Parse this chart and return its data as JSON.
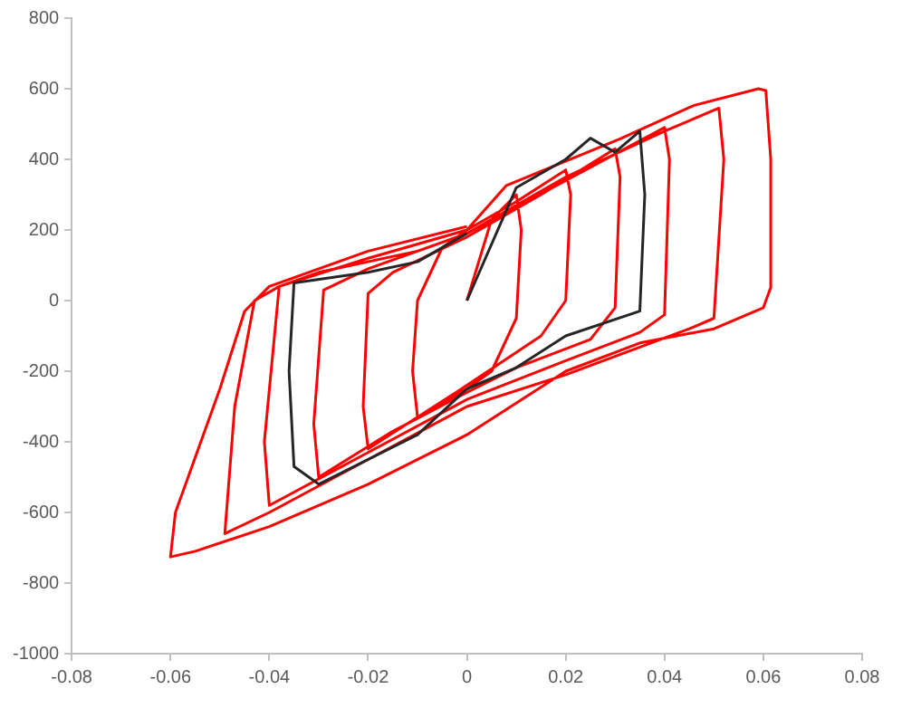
{
  "chart_data": {
    "type": "line",
    "xlim": [
      -0.08,
      0.08
    ],
    "xticks": [
      -0.08,
      -0.06,
      -0.04,
      -0.02,
      0,
      0.02,
      0.04,
      0.06,
      0.08
    ],
    "ylim": [
      -1000,
      800
    ],
    "yticks": [
      -1000,
      -800,
      -600,
      -400,
      -200,
      0,
      200,
      400,
      600,
      800
    ],
    "grid": false,
    "legend": false,
    "marker": "none",
    "line_style": "solid",
    "series": [
      {
        "color": "#262626",
        "x": [
          0,
          0.01,
          0.02,
          0.025,
          0.03,
          0.035,
          0.036,
          0.035,
          0.02,
          0.01,
          0,
          -0.01,
          -0.02,
          -0.03,
          -0.035,
          -0.036,
          -0.035,
          -0.02,
          -0.01,
          0
        ],
        "values": [
          0,
          320,
          400,
          460,
          420,
          480,
          300,
          -30,
          -100,
          -190,
          -250,
          -380,
          -450,
          -520,
          -470,
          -200,
          50,
          80,
          110,
          190
        ]
      },
      {
        "color": "#ff0000",
        "x": [
          0,
          0.005,
          0.01,
          0.011,
          0.01,
          0.005,
          0,
          -0.01,
          -0.011,
          -0.01,
          -0.005,
          0,
          0.01,
          0.02,
          0.021,
          0.02,
          0.015,
          0,
          -0.01,
          -0.02,
          -0.021,
          -0.02,
          -0.015,
          0,
          0.015,
          0.03,
          0.031,
          0.03,
          0.025,
          0.01,
          0,
          -0.015,
          -0.03,
          -0.031,
          -0.029,
          -0.02,
          0,
          0.02,
          0.04,
          0.041,
          0.04,
          0.035,
          0.02,
          0,
          -0.02,
          -0.04,
          -0.041,
          -0.038,
          -0.03,
          -0.01,
          0,
          0.02,
          0.04,
          0.051,
          0.052,
          0.05,
          0.045,
          0.02,
          0,
          -0.02,
          -0.04,
          -0.049,
          -0.047,
          -0.043,
          -0.038,
          -0.02,
          0,
          0.008,
          0.031,
          0.046,
          0.059,
          0.0605,
          0.0615,
          0.0615,
          0.06,
          0.05,
          0.035,
          0.02,
          0,
          -0.02,
          -0.04,
          -0.055,
          -0.06,
          -0.059,
          -0.05,
          -0.045,
          -0.04,
          -0.02,
          0
        ],
        "values": [
          0,
          230,
          300,
          200,
          -50,
          -200,
          -250,
          -330,
          -200,
          0,
          150,
          200,
          280,
          370,
          300,
          0,
          -100,
          -240,
          -330,
          -420,
          -300,
          20,
          80,
          180,
          300,
          430,
          350,
          -20,
          -110,
          -190,
          -260,
          -370,
          -500,
          -350,
          30,
          90,
          190,
          340,
          490,
          400,
          -40,
          -90,
          -170,
          -280,
          -430,
          -580,
          -400,
          40,
          80,
          140,
          190,
          350,
          480,
          545,
          400,
          -50,
          -80,
          -210,
          -300,
          -450,
          -600,
          -660,
          -300,
          0,
          40,
          120,
          200,
          326,
          458,
          553,
          600,
          595,
          400,
          37,
          -20,
          -80,
          -120,
          -200,
          -380,
          -520,
          -640,
          -710,
          -726,
          -600,
          -250,
          -30,
          40,
          140,
          210
        ]
      }
    ]
  }
}
